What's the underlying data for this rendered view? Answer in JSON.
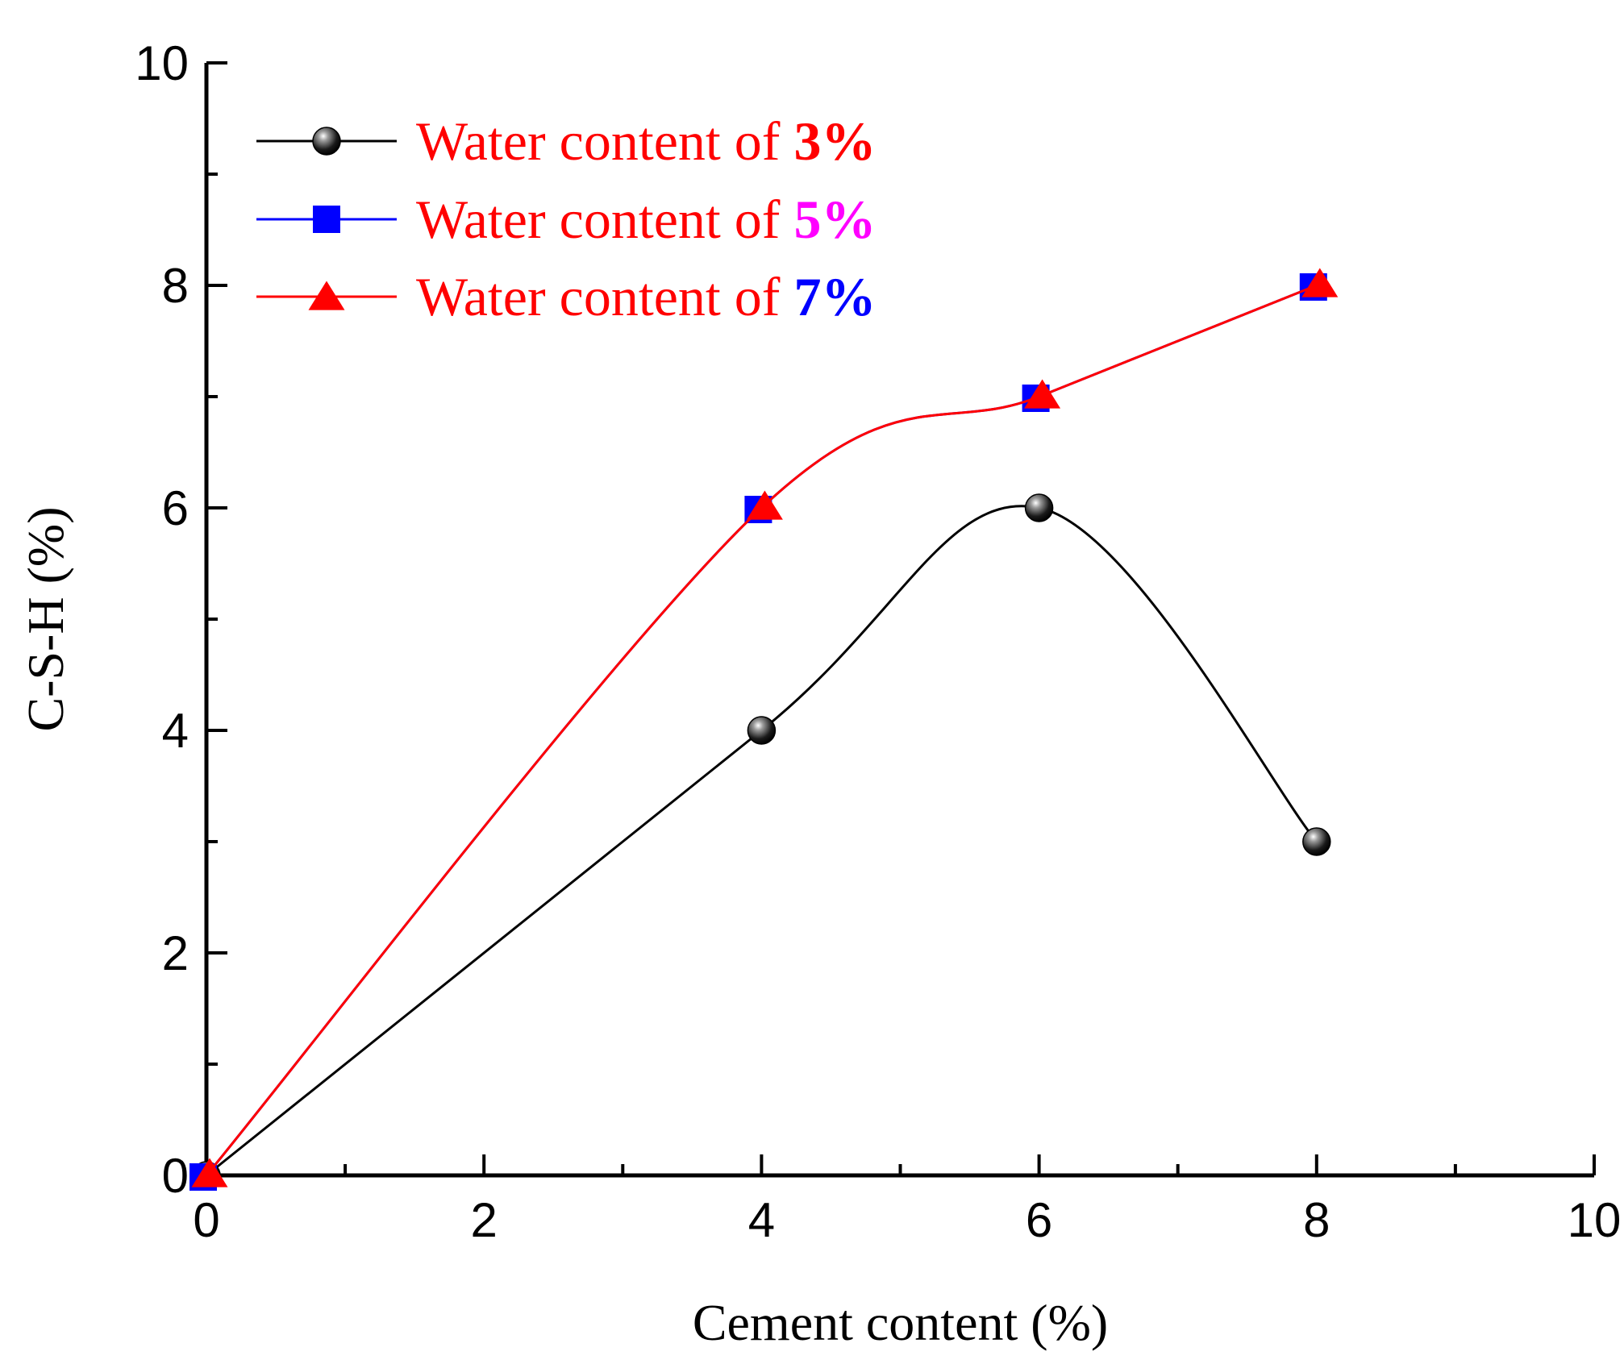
{
  "chart_data": {
    "type": "line",
    "xlabel": "Cement content (%)",
    "ylabel": "C-S-H (%)",
    "xlim": [
      0,
      10
    ],
    "ylim": [
      0,
      10
    ],
    "xticks": [
      0,
      2,
      4,
      6,
      8,
      10
    ],
    "yticks": [
      0,
      2,
      4,
      6,
      8,
      10
    ],
    "xtick_labels": [
      "0",
      "2",
      "4",
      "6",
      "8",
      "10"
    ],
    "ytick_labels": [
      "0",
      "2",
      "4",
      "6",
      "8",
      "10"
    ],
    "x_minor_ticks": [
      1,
      3,
      5,
      7,
      9
    ],
    "y_minor_ticks": [
      1,
      3,
      5,
      7,
      9
    ],
    "grid": false,
    "legend_position": "top-left",
    "series": [
      {
        "name": "Water content of 3%",
        "label_prefix": "Water content of ",
        "label_value": "3%",
        "label_prefix_color": "#ff0000",
        "label_value_color": "#ff0000",
        "line_color": "#000000",
        "marker": "sphere",
        "marker_color": "#111111",
        "x": [
          0,
          4,
          6,
          8
        ],
        "y": [
          0,
          4,
          6,
          3
        ]
      },
      {
        "name": "Water content of 5%",
        "label_prefix": "Water content of ",
        "label_value": "5%",
        "label_prefix_color": "#ff0000",
        "label_value_color": "#ff00ff",
        "line_color": "#0000ff",
        "marker": "square",
        "marker_color": "#0000ff",
        "x": [
          0,
          4,
          6,
          8
        ],
        "y": [
          0,
          6,
          7,
          8
        ]
      },
      {
        "name": "Water content of 7%",
        "label_prefix": "Water content of ",
        "label_value": "7%",
        "label_prefix_color": "#ff0000",
        "label_value_color": "#0000ff",
        "line_color": "#ff0000",
        "marker": "triangle",
        "marker_color": "#ff0000",
        "x": [
          0,
          4,
          6,
          8
        ],
        "y": [
          0,
          6,
          7,
          8
        ]
      }
    ]
  }
}
